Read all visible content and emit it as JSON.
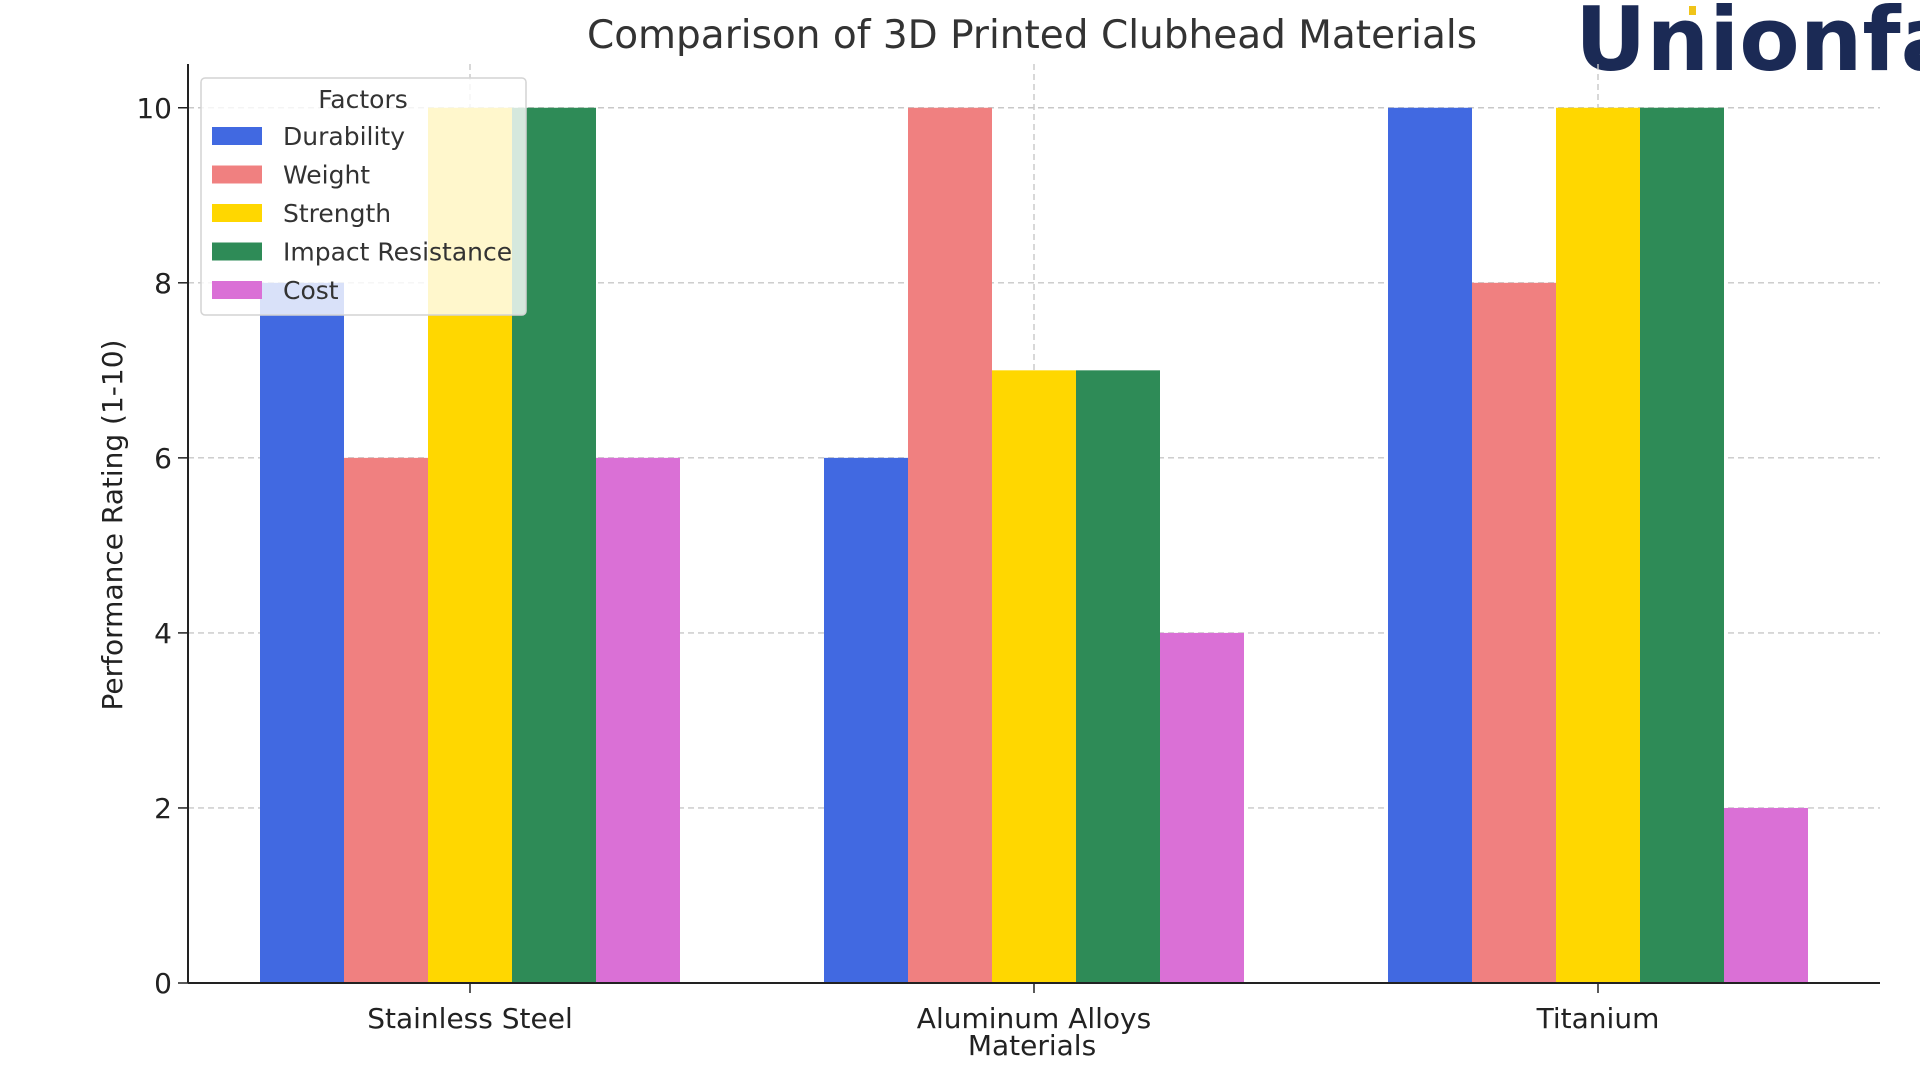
{
  "logo": {
    "text": "Unionfab",
    "color": "#1b2a55",
    "accent": "#f0c419"
  },
  "chart_data": {
    "type": "bar",
    "title": "Comparison of 3D Printed Clubhead Materials",
    "xlabel": "Materials",
    "ylabel": "Performance Rating (1-10)",
    "ylim": [
      0,
      10.5
    ],
    "yticks": [
      0,
      2,
      4,
      6,
      8,
      10
    ],
    "grid": true,
    "categories": [
      "Stainless Steel",
      "Aluminum Alloys",
      "Titanium"
    ],
    "legend_title": "Factors",
    "legend_position": "top-left",
    "series": [
      {
        "name": "Durability",
        "color": "#4169e1",
        "values": [
          8,
          6,
          10
        ]
      },
      {
        "name": "Weight",
        "color": "#f08080",
        "values": [
          6,
          10,
          8
        ]
      },
      {
        "name": "Strength",
        "color": "#ffd700",
        "values": [
          10,
          7,
          10
        ]
      },
      {
        "name": "Impact Resistance",
        "color": "#2e8b57",
        "values": [
          10,
          7,
          10
        ]
      },
      {
        "name": "Cost",
        "color": "#da70d6",
        "values": [
          6,
          4,
          2
        ]
      }
    ]
  }
}
